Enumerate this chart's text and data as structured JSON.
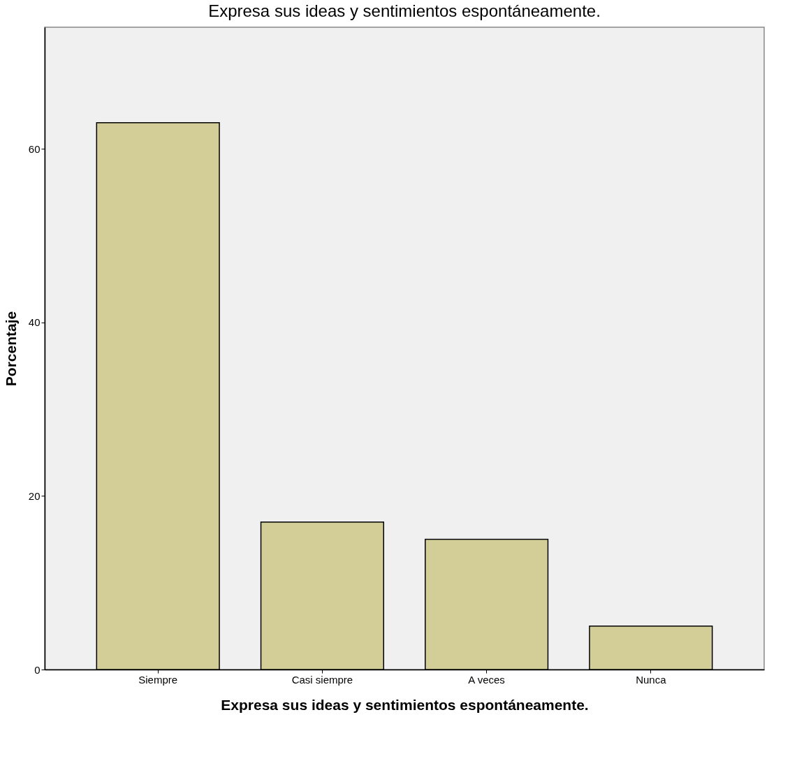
{
  "chart_data": {
    "type": "bar",
    "title": "Expresa sus ideas y sentimientos espontáneamente.",
    "xlabel": "Expresa sus ideas y sentimientos espontáneamente.",
    "ylabel": "Porcentaje",
    "categories": [
      "Siempre",
      "Casi siempre",
      "A veces",
      "Nunca"
    ],
    "values": [
      63,
      17,
      15,
      5
    ],
    "color": "#d3ce97",
    "ylim": [
      0,
      74
    ],
    "yticks": [
      0,
      20,
      40,
      60
    ],
    "grid": false
  }
}
